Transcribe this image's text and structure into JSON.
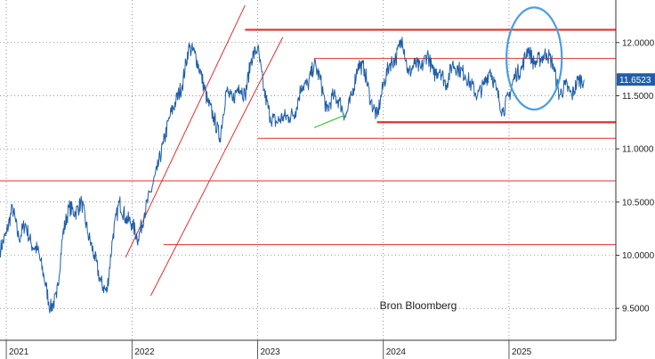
{
  "chart_data": {
    "type": "line",
    "title": "",
    "xlabel": "",
    "ylabel": "",
    "source_note": "Bron Bloomberg",
    "xlim": [
      2020.95,
      2025.85
    ],
    "ylim": [
      9.2,
      12.4
    ],
    "x_ticks": [
      {
        "label": "2021",
        "x": 2021.0
      },
      {
        "label": "2022",
        "x": 2022.0
      },
      {
        "label": "2023",
        "x": 2023.0
      },
      {
        "label": "2024",
        "x": 2024.0
      },
      {
        "label": "2025",
        "x": 2025.0
      }
    ],
    "y_ticks": [
      {
        "label": "12.0000",
        "y": 12.0
      },
      {
        "label": "11.5000",
        "y": 11.5
      },
      {
        "label": "11.0000",
        "y": 11.0
      },
      {
        "label": "10.5000",
        "y": 10.5
      },
      {
        "label": "10.0000",
        "y": 10.0
      },
      {
        "label": "9.5000",
        "y": 9.5
      }
    ],
    "last_value": {
      "label": "11.6523",
      "y": 11.6523
    },
    "grid": true,
    "colors": {
      "series": "#1f5ea8",
      "annotation": "#e03030",
      "trend_green": "#3dbb3d",
      "highlight_ellipse": "#4a9ee0",
      "last_value_bg": "#1f5ea8",
      "grid": "#555555"
    },
    "series": [
      {
        "x": [
          2020.95,
          2021.0,
          2021.05,
          2021.1,
          2021.15,
          2021.2,
          2021.25,
          2021.3,
          2021.35,
          2021.4,
          2021.45,
          2021.5,
          2021.55,
          2021.6,
          2021.65,
          2021.7,
          2021.75,
          2021.8,
          2021.85,
          2021.9,
          2021.95,
          2022.0,
          2022.05,
          2022.1,
          2022.15,
          2022.2,
          2022.25,
          2022.3,
          2022.35,
          2022.4,
          2022.45,
          2022.5,
          2022.55,
          2022.6,
          2022.65,
          2022.7,
          2022.75,
          2022.8,
          2022.85,
          2022.9,
          2022.95,
          2023.0,
          2023.05,
          2023.1,
          2023.15,
          2023.2,
          2023.25,
          2023.3,
          2023.35,
          2023.4,
          2023.45,
          2023.5,
          2023.55,
          2023.6,
          2023.65,
          2023.7,
          2023.75,
          2023.8,
          2023.85,
          2023.9,
          2023.95,
          2024.0,
          2024.05,
          2024.1,
          2024.15,
          2024.2,
          2024.25,
          2024.3,
          2024.35,
          2024.4,
          2024.45,
          2024.5,
          2024.55,
          2024.6,
          2024.65,
          2024.7,
          2024.75,
          2024.8,
          2024.85,
          2024.9,
          2024.95,
          2025.0,
          2025.05,
          2025.1,
          2025.15,
          2025.2,
          2025.25,
          2025.3,
          2025.35,
          2025.4,
          2025.45,
          2025.5,
          2025.55,
          2025.6
        ],
        "values": [
          10.05,
          10.2,
          10.45,
          10.15,
          10.3,
          10.1,
          10.05,
          9.8,
          9.5,
          9.6,
          10.2,
          10.45,
          10.4,
          10.5,
          10.2,
          10.0,
          9.75,
          9.65,
          10.2,
          10.5,
          10.35,
          10.3,
          10.15,
          10.4,
          10.6,
          10.8,
          11.05,
          11.3,
          11.45,
          11.6,
          11.95,
          11.9,
          11.7,
          11.45,
          11.3,
          11.1,
          11.55,
          11.45,
          11.6,
          11.5,
          11.85,
          11.95,
          11.55,
          11.3,
          11.25,
          11.3,
          11.3,
          11.35,
          11.6,
          11.6,
          11.8,
          11.65,
          11.35,
          11.5,
          11.45,
          11.3,
          11.5,
          11.8,
          11.75,
          11.45,
          11.3,
          11.6,
          11.8,
          11.85,
          12.05,
          11.7,
          11.8,
          11.75,
          11.9,
          11.7,
          11.75,
          11.6,
          11.8,
          11.75,
          11.7,
          11.6,
          11.5,
          11.6,
          11.75,
          11.55,
          11.35,
          11.5,
          11.7,
          11.75,
          11.95,
          11.8,
          11.85,
          11.9,
          11.8,
          11.5,
          11.6,
          11.5,
          11.65,
          11.65
        ]
      }
    ],
    "annotations": {
      "h_lines": [
        {
          "y": 12.12,
          "x_start": 2022.9,
          "x_end": 2025.85,
          "weight": "thick"
        },
        {
          "y": 11.85,
          "x_start": 2023.45,
          "x_end": 2025.85,
          "weight": "thin"
        },
        {
          "y": 11.25,
          "x_start": 2023.95,
          "x_end": 2025.85,
          "weight": "thick"
        },
        {
          "y": 11.1,
          "x_start": 2023.0,
          "x_end": 2025.85,
          "weight": "thin"
        },
        {
          "y": 10.7,
          "x_start": 2020.95,
          "x_end": 2025.85,
          "weight": "thin"
        },
        {
          "y": 10.1,
          "x_start": 2022.25,
          "x_end": 2025.85,
          "weight": "thin"
        }
      ],
      "channel_lines": [
        {
          "x1": 2021.95,
          "y1": 9.98,
          "x2": 2022.9,
          "y2": 12.35
        },
        {
          "x1": 2022.15,
          "y1": 9.62,
          "x2": 2023.2,
          "y2": 12.05
        }
      ],
      "green_line": {
        "x1": 2023.45,
        "y1": 11.2,
        "x2": 2023.7,
        "y2": 11.32
      },
      "ellipse": {
        "cx": 2025.2,
        "cy": 11.85,
        "rx": 0.22,
        "ry": 0.48
      }
    }
  }
}
